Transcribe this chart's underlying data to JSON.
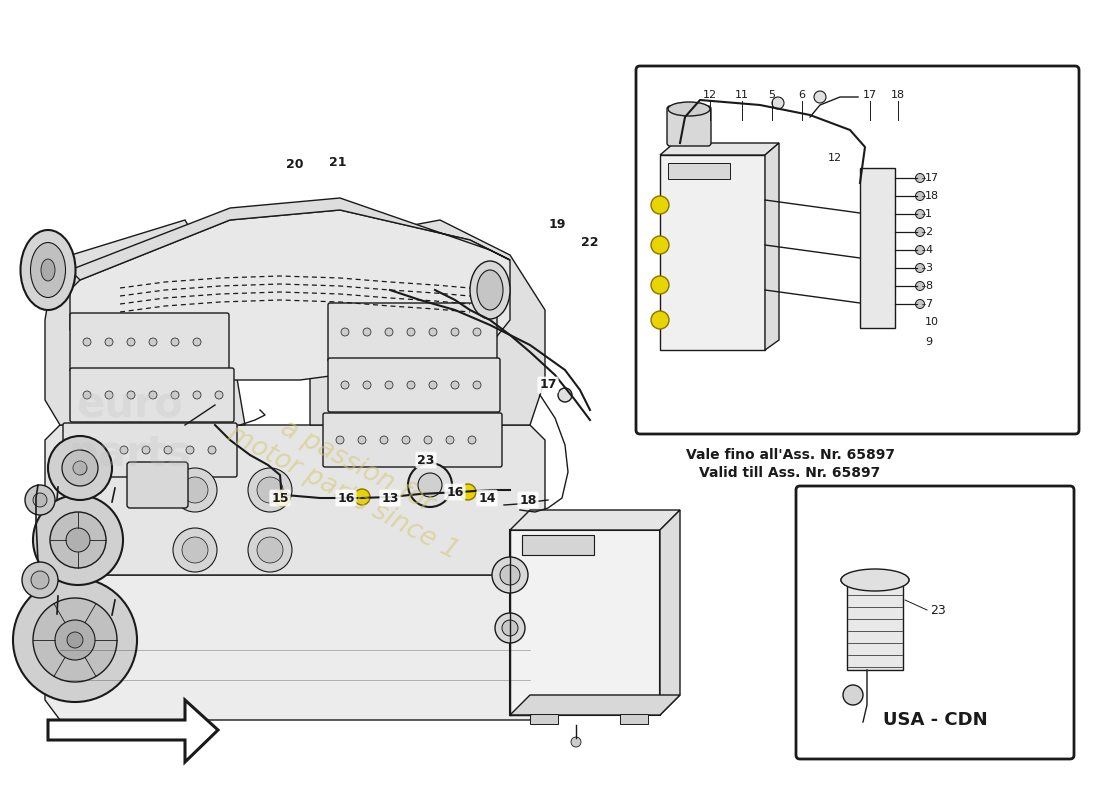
{
  "bg_color": "#ffffff",
  "lc": "#1a1a1a",
  "lc_light": "#555555",
  "fill_engine": "#e8e8e8",
  "fill_light": "#f0f0f0",
  "fill_mid": "#d8d8d8",
  "fill_dark": "#c8c8c8",
  "watermark_color": "#d4c870",
  "watermark_alpha": 0.55,
  "inset1_text1": "Vale fino all'Ass. Nr. 65897",
  "inset1_text2": "Valid till Ass. Nr. 65897",
  "inset2_text": "USA - CDN",
  "arrow_color": "#ffffff"
}
